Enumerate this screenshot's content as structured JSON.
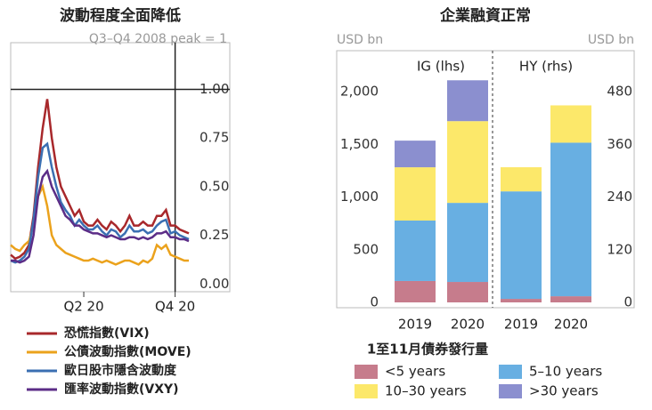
{
  "chart_data": [
    {
      "type": "line",
      "title": "波動程度全面降低",
      "subtitle": "Q3–Q4 2008 peak = 1",
      "categories": [
        null,
        null,
        null,
        null,
        null,
        null,
        null,
        null,
        null,
        null,
        null,
        null,
        null,
        null,
        null,
        null,
        "Q2 20",
        null,
        null,
        null,
        null,
        null,
        null,
        null,
        null,
        null,
        null,
        null,
        null,
        null,
        null,
        null,
        null,
        null,
        null,
        null,
        "Q4 20",
        null,
        null,
        null
      ],
      "series": [
        {
          "name": "恐慌指數(VIX)",
          "color": "#a8282b",
          "values": [
            0.15,
            0.13,
            0.14,
            0.16,
            0.2,
            0.35,
            0.6,
            0.8,
            0.95,
            0.75,
            0.6,
            0.5,
            0.45,
            0.4,
            0.35,
            0.38,
            0.32,
            0.3,
            0.3,
            0.33,
            0.3,
            0.28,
            0.32,
            0.3,
            0.27,
            0.3,
            0.35,
            0.3,
            0.3,
            0.32,
            0.3,
            0.3,
            0.35,
            0.35,
            0.38,
            0.3,
            0.3,
            0.28,
            0.27,
            0.26
          ]
        },
        {
          "name": "公債波動指數(MOVE)",
          "color": "#eba21c",
          "values": [
            0.2,
            0.18,
            0.17,
            0.2,
            0.22,
            0.3,
            0.45,
            0.5,
            0.4,
            0.25,
            0.2,
            0.18,
            0.16,
            0.15,
            0.14,
            0.13,
            0.12,
            0.12,
            0.13,
            0.12,
            0.11,
            0.12,
            0.11,
            0.1,
            0.11,
            0.12,
            0.12,
            0.11,
            0.1,
            0.12,
            0.11,
            0.13,
            0.2,
            0.18,
            0.2,
            0.15,
            0.14,
            0.13,
            0.12,
            0.12
          ]
        },
        {
          "name": "歐日股市隱含波動度",
          "color": "#3b6fb2",
          "values": [
            0.12,
            0.11,
            0.12,
            0.14,
            0.18,
            0.33,
            0.55,
            0.7,
            0.72,
            0.6,
            0.5,
            0.42,
            0.38,
            0.35,
            0.3,
            0.33,
            0.3,
            0.28,
            0.28,
            0.3,
            0.27,
            0.25,
            0.28,
            0.27,
            0.24,
            0.26,
            0.3,
            0.27,
            0.27,
            0.28,
            0.26,
            0.27,
            0.3,
            0.32,
            0.33,
            0.26,
            0.27,
            0.25,
            0.24,
            0.23
          ]
        },
        {
          "name": "匯率波動指數(VXY)",
          "color": "#5c2d87",
          "values": [
            0.12,
            0.12,
            0.11,
            0.12,
            0.14,
            0.25,
            0.45,
            0.55,
            0.58,
            0.5,
            0.45,
            0.4,
            0.35,
            0.33,
            0.3,
            0.3,
            0.28,
            0.27,
            0.26,
            0.26,
            0.25,
            0.24,
            0.25,
            0.24,
            0.23,
            0.23,
            0.24,
            0.24,
            0.23,
            0.24,
            0.23,
            0.24,
            0.26,
            0.26,
            0.27,
            0.24,
            0.24,
            0.23,
            0.23,
            0.22
          ]
        }
      ],
      "ylim": [
        -0.04,
        1.24
      ],
      "yticks": [
        {
          "value": 0,
          "label": "0.00"
        },
        {
          "value": 0.25,
          "label": "0.25"
        },
        {
          "value": 0.5,
          "label": "0.50"
        },
        {
          "value": 0.75,
          "label": "0.75"
        },
        {
          "value": 1,
          "label": "1.00"
        }
      ],
      "hline": 1
    },
    {
      "type": "stacked_bar",
      "title": "企業融資正常",
      "y_label": "USD bn",
      "y2_label": "USD bn",
      "annotations": [
        "IG (lhs)",
        "HY (rhs)"
      ],
      "categories": [
        "2019",
        "2020",
        "2019",
        "2020"
      ],
      "bar_axis": [
        "y",
        "y",
        "y2",
        "y2"
      ],
      "legend_title": "1至11月債券發行量",
      "series": [
        {
          "name": "<5 years",
          "color": "#c67c8c",
          "values": [
            203,
            194,
            8,
            14
          ]
        },
        {
          "name": "5–10 years",
          "color": "#68afe2",
          "values": [
            574,
            751,
            245,
            350
          ]
        },
        {
          "name": "10–30 years",
          "color": "#fce86a",
          "values": [
            506,
            776,
            55,
            85
          ]
        },
        {
          "name": ">30 years",
          "color": "#8b8fcf",
          "values": [
            253,
            388,
            0,
            0
          ]
        }
      ],
      "ylim": [
        0,
        2390
      ],
      "yticks": [
        0,
        500,
        {
          "value": 1000,
          "label": "1,000"
        },
        {
          "value": 1500,
          "label": "1,500"
        },
        {
          "value": 2000,
          "label": "2,000"
        }
      ],
      "y2lim": [
        0,
        573.6
      ],
      "y2ticks": [
        0,
        120,
        240,
        360,
        480
      ]
    }
  ]
}
